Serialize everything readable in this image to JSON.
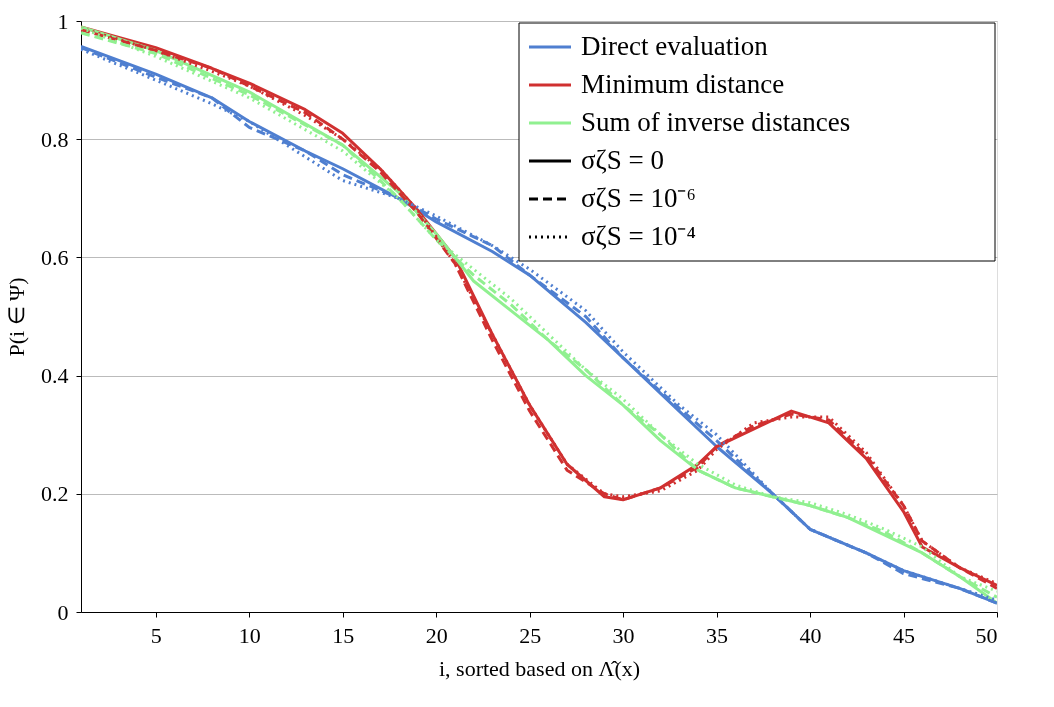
{
  "chart_data": {
    "type": "line",
    "xlabel": "i, sorted based on Λ̂(x)",
    "ylabel": "P(i ∈ Ψ)",
    "xlim": [
      1,
      50
    ],
    "xticks": [
      5,
      10,
      15,
      20,
      25,
      30,
      35,
      40,
      45,
      50
    ],
    "ylim": [
      0,
      1
    ],
    "yticks": [
      0,
      0.2,
      0.4,
      0.6,
      0.8,
      1
    ],
    "grid": "y",
    "legend": "top right",
    "series": [
      {
        "name": "Direct evaluation",
        "color": "#4f7fd0",
        "line_style": "solid",
        "x": [
          1,
          5,
          8,
          10,
          13,
          15,
          18,
          20,
          23,
          25,
          28,
          30,
          33,
          35,
          38,
          40,
          43,
          45,
          48,
          50
        ],
        "values": [
          0.957,
          0.91,
          0.87,
          0.83,
          0.78,
          0.75,
          0.7,
          0.66,
          0.61,
          0.57,
          0.49,
          0.43,
          0.34,
          0.28,
          0.2,
          0.14,
          0.1,
          0.07,
          0.04,
          0.015
        ]
      },
      {
        "name": "Minimum distance",
        "color": "#d03030",
        "line_style": "solid",
        "x": [
          1,
          5,
          8,
          10,
          13,
          15,
          17,
          19,
          21,
          23,
          25,
          27,
          29,
          30,
          32,
          34,
          35,
          37,
          39,
          41,
          43,
          45,
          46,
          48,
          50
        ],
        "values": [
          0.99,
          0.955,
          0.92,
          0.895,
          0.85,
          0.81,
          0.75,
          0.68,
          0.6,
          0.47,
          0.35,
          0.25,
          0.195,
          0.19,
          0.21,
          0.25,
          0.28,
          0.31,
          0.34,
          0.32,
          0.26,
          0.17,
          0.11,
          0.075,
          0.045
        ]
      },
      {
        "name": "Sum of inverse distances",
        "color": "#90f090",
        "line_style": "solid",
        "x": [
          1,
          5,
          10,
          15,
          18,
          20,
          22,
          24,
          26,
          28,
          30,
          32,
          34,
          36,
          38,
          40,
          42,
          44,
          46,
          48,
          50
        ],
        "values": [
          0.99,
          0.95,
          0.88,
          0.79,
          0.71,
          0.64,
          0.56,
          0.51,
          0.46,
          0.4,
          0.35,
          0.29,
          0.24,
          0.21,
          0.195,
          0.18,
          0.16,
          0.13,
          0.1,
          0.06,
          0.015
        ]
      },
      {
        "color": "#4f7fd0",
        "line_style": "dashed",
        "x": [
          1,
          5,
          8,
          10,
          13,
          15,
          18,
          20,
          23,
          25,
          28,
          30,
          33,
          35,
          38,
          40,
          43,
          45,
          48,
          50
        ],
        "values": [
          0.955,
          0.905,
          0.87,
          0.82,
          0.78,
          0.74,
          0.7,
          0.665,
          0.62,
          0.57,
          0.5,
          0.43,
          0.345,
          0.29,
          0.2,
          0.14,
          0.1,
          0.065,
          0.04,
          0.015
        ]
      },
      {
        "color": "#d03030",
        "line_style": "dashed",
        "x": [
          1,
          5,
          8,
          10,
          13,
          15,
          17,
          19,
          21,
          23,
          25,
          27,
          29,
          30,
          32,
          34,
          35,
          37,
          39,
          41,
          43,
          45,
          46,
          48,
          50
        ],
        "values": [
          0.985,
          0.95,
          0.92,
          0.89,
          0.845,
          0.8,
          0.745,
          0.675,
          0.59,
          0.46,
          0.34,
          0.24,
          0.2,
          0.19,
          0.21,
          0.245,
          0.28,
          0.315,
          0.335,
          0.325,
          0.265,
          0.18,
          0.12,
          0.075,
          0.04
        ]
      },
      {
        "color": "#90f090",
        "line_style": "dashed",
        "x": [
          1,
          5,
          10,
          15,
          18,
          20,
          22,
          24,
          26,
          28,
          30,
          32,
          34,
          36,
          38,
          40,
          42,
          44,
          46,
          48,
          50
        ],
        "values": [
          0.98,
          0.945,
          0.875,
          0.79,
          0.7,
          0.63,
          0.57,
          0.52,
          0.46,
          0.41,
          0.35,
          0.3,
          0.24,
          0.21,
          0.195,
          0.18,
          0.16,
          0.135,
          0.1,
          0.06,
          0.025
        ]
      },
      {
        "color": "#4f7fd0",
        "line_style": "dotted",
        "x": [
          1,
          5,
          8,
          10,
          13,
          15,
          18,
          20,
          23,
          25,
          28,
          30,
          33,
          35,
          38,
          40,
          43,
          45,
          48,
          50
        ],
        "values": [
          0.952,
          0.9,
          0.86,
          0.83,
          0.77,
          0.73,
          0.7,
          0.67,
          0.62,
          0.58,
          0.51,
          0.44,
          0.35,
          0.3,
          0.2,
          0.14,
          0.1,
          0.07,
          0.04,
          0.02
        ]
      },
      {
        "color": "#d03030",
        "line_style": "dotted",
        "x": [
          1,
          5,
          8,
          10,
          13,
          15,
          17,
          19,
          21,
          23,
          25,
          27,
          29,
          30,
          32,
          34,
          35,
          37,
          39,
          41,
          43,
          45,
          46,
          48,
          50
        ],
        "values": [
          0.988,
          0.95,
          0.915,
          0.89,
          0.84,
          0.8,
          0.75,
          0.68,
          0.59,
          0.47,
          0.35,
          0.25,
          0.2,
          0.195,
          0.205,
          0.24,
          0.275,
          0.32,
          0.33,
          0.33,
          0.27,
          0.18,
          0.12,
          0.075,
          0.048
        ]
      },
      {
        "color": "#90f090",
        "line_style": "dotted",
        "x": [
          1,
          5,
          10,
          15,
          18,
          20,
          22,
          24,
          26,
          28,
          30,
          32,
          34,
          36,
          38,
          40,
          42,
          44,
          46,
          48,
          50
        ],
        "values": [
          0.988,
          0.94,
          0.87,
          0.78,
          0.7,
          0.63,
          0.58,
          0.53,
          0.47,
          0.41,
          0.36,
          0.3,
          0.25,
          0.215,
          0.195,
          0.185,
          0.165,
          0.14,
          0.11,
          0.06,
          0.035
        ]
      }
    ],
    "annotations": [
      "σζS = 0",
      "σζS = 10⁻⁶",
      "σζS = 10⁻⁴"
    ]
  }
}
